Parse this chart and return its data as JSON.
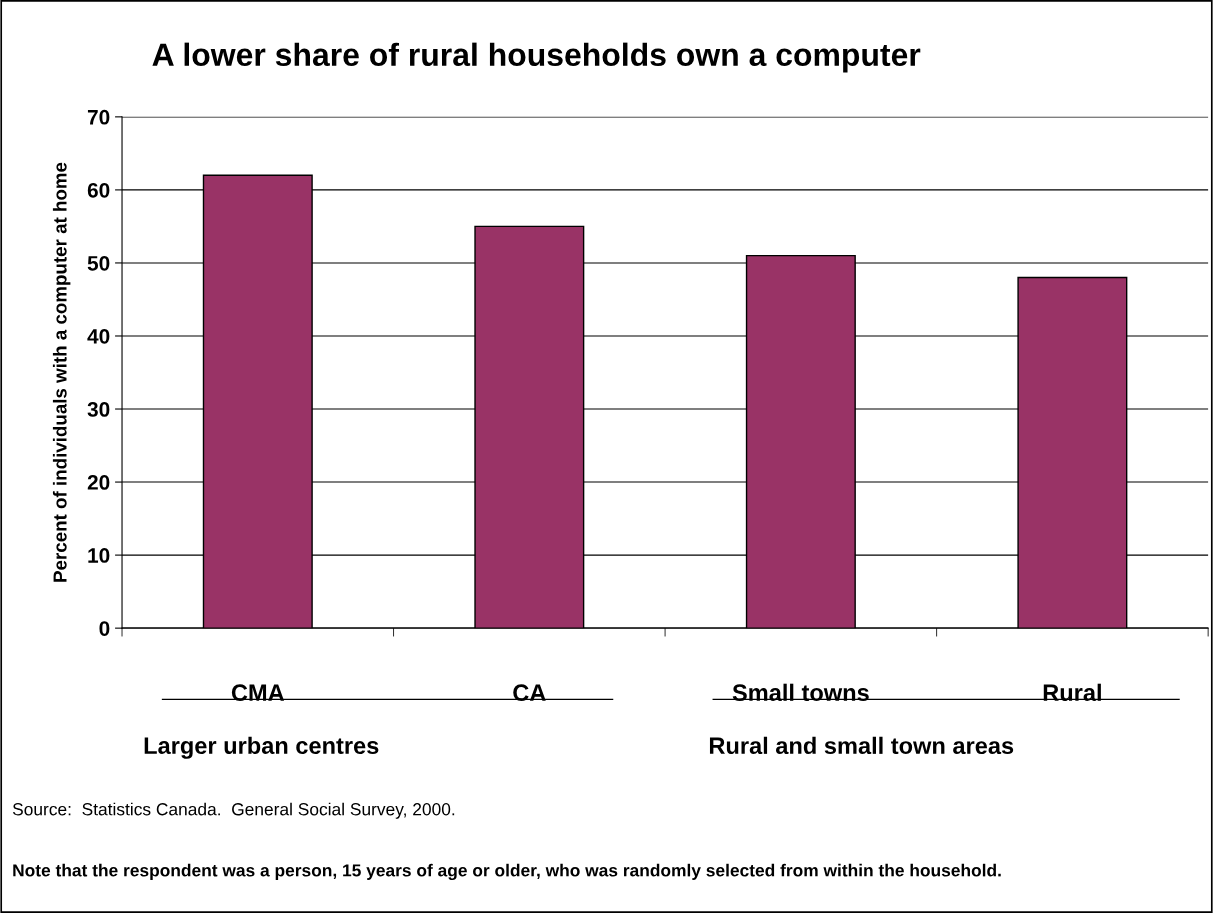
{
  "chart_data": {
    "type": "bar",
    "title": "A lower share of rural households own a computer",
    "ylabel": "Percent of individuals with a computer at home",
    "categories": [
      "CMA",
      "CA",
      "Small towns",
      "Rural"
    ],
    "values": [
      62,
      55,
      51,
      48
    ],
    "color": "#993366",
    "ylim": [
      0,
      70
    ],
    "yticks": [
      0,
      10,
      20,
      30,
      40,
      50,
      60,
      70
    ],
    "grid": "y",
    "annotations": [
      "Larger urban centres",
      "Rural and small town areas",
      "Source:  Statistics Canada.  General Social Survey, 2000.",
      "Note that the respondent was a person, 15 years of age or older, who was randomly selected from within the household."
    ]
  }
}
